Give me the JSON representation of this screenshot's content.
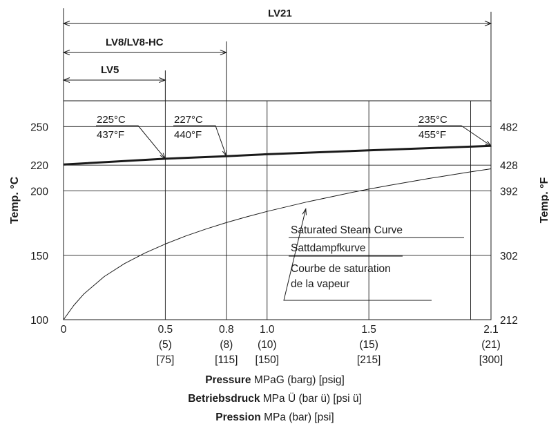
{
  "chart_data": {
    "type": "line",
    "xlim": [
      0,
      2.1
    ],
    "ylim": [
      100,
      270
    ],
    "grid": true,
    "left_axis_label": "Temp. °C",
    "right_axis_label": "Temp. °F",
    "x_ticks": [
      {
        "value": 0,
        "mpa": "0",
        "bar": "",
        "psi": ""
      },
      {
        "value": 0.5,
        "mpa": "0.5",
        "bar": "(5)",
        "psi": "[75]"
      },
      {
        "value": 0.8,
        "mpa": "0.8",
        "bar": "(8)",
        "psi": "[115]"
      },
      {
        "value": 1.0,
        "mpa": "1.0",
        "bar": "(10)",
        "psi": "[150]"
      },
      {
        "value": 1.5,
        "mpa": "1.5",
        "bar": "(15)",
        "psi": "[215]"
      },
      {
        "value": 2.1,
        "mpa": "2.1",
        "bar": "(21)",
        "psi": "[300]"
      }
    ],
    "extra_gridlines_x": [
      2.0
    ],
    "left_ticks": [
      {
        "value": 100,
        "label": "100"
      },
      {
        "value": 150,
        "label": "150"
      },
      {
        "value": 200,
        "label": "200"
      },
      {
        "value": 220,
        "label": "220"
      },
      {
        "value": 250,
        "label": "250"
      }
    ],
    "right_ticks": [
      {
        "value": 100,
        "label": "212"
      },
      {
        "value": 150,
        "label": "302"
      },
      {
        "value": 200,
        "label": "392"
      },
      {
        "value": 220,
        "label": "428"
      },
      {
        "value": 250,
        "label": "482"
      }
    ],
    "xlabel_lines": [
      {
        "bold": "Pressure",
        "rest": " MPaG (barg) [psig]"
      },
      {
        "bold": "Betriebsdruck",
        "rest": " MPa Ü (bar ü) [psi ü]"
      },
      {
        "bold": "Pression",
        "rest": " MPa (bar) [psi]"
      }
    ],
    "series": [
      {
        "name": "max_temp",
        "style": "bold",
        "x": [
          0,
          0.5,
          0.8,
          1.0,
          1.5,
          2.1
        ],
        "y": [
          220.5,
          225,
          227,
          228.5,
          231.5,
          235
        ]
      },
      {
        "name": "saturated_steam",
        "style": "thin",
        "x": [
          0,
          0.05,
          0.1,
          0.2,
          0.3,
          0.4,
          0.5,
          0.6,
          0.7,
          0.8,
          0.9,
          1.0,
          1.2,
          1.4,
          1.5,
          1.6,
          1.8,
          2.0,
          2.1
        ],
        "y": [
          100,
          111,
          120,
          133.5,
          143.6,
          151.8,
          158.8,
          165,
          170.4,
          175.4,
          179.9,
          184.1,
          191.6,
          198.3,
          201.4,
          204.3,
          209.8,
          214.8,
          217.2
        ]
      }
    ],
    "ranges": [
      {
        "label": "LV21",
        "max": 2.1
      },
      {
        "label": "LV8/LV8-HC",
        "max": 0.8
      },
      {
        "label": "LV5",
        "max": 0.5
      }
    ],
    "callouts": [
      {
        "x": 0.5,
        "y": 225,
        "c": "225°C",
        "f": "437°F"
      },
      {
        "x": 0.8,
        "y": 227,
        "c": "227°C",
        "f": "440°F"
      },
      {
        "x": 2.1,
        "y": 235,
        "c": "235°C",
        "f": "455°F"
      }
    ],
    "legend_lines": [
      "Saturated Steam Curve",
      "Sattdampfkurve",
      "Courbe de saturation",
      "de la vapeur"
    ]
  }
}
